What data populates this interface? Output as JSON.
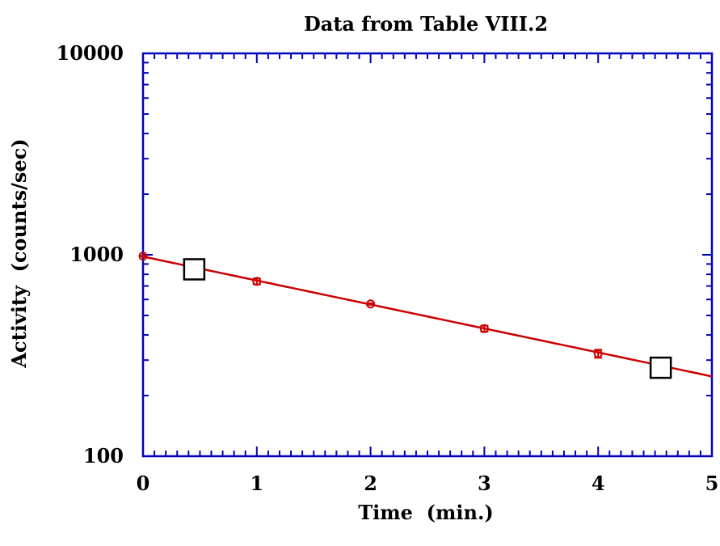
{
  "chart_data": {
    "type": "scatter",
    "title": "Data from Table VIII.2",
    "xlabel": "Time  (min.)",
    "ylabel": "Activity  (counts/sec)",
    "xlim": [
      0,
      5
    ],
    "ylim": [
      100,
      10000
    ],
    "yscale": "log",
    "x_ticks": [
      "0",
      "1",
      "2",
      "3",
      "4",
      "5"
    ],
    "y_ticks": [
      "100",
      "1000",
      "10000"
    ],
    "grid": false,
    "series": [
      {
        "kind": "points",
        "color": "#cc0000",
        "x": [
          0,
          1,
          2,
          3,
          4
        ],
        "y": [
          985,
          738,
          570,
          430,
          323
        ],
        "yerr": [
          5,
          25,
          5,
          15,
          15
        ]
      },
      {
        "kind": "fit-curve",
        "color": "#cc0000",
        "model": "exponential",
        "amplitude": 980,
        "rate_per_min": 0.274,
        "x_range": [
          0,
          5
        ]
      },
      {
        "kind": "markers",
        "marker": "open-square",
        "color": "#000000",
        "x": [
          0.45,
          4.55
        ],
        "y": [
          847,
          275
        ]
      }
    ],
    "colors": {
      "axis": "#0000bb",
      "data": "#cc0000",
      "text": "#000000"
    }
  }
}
